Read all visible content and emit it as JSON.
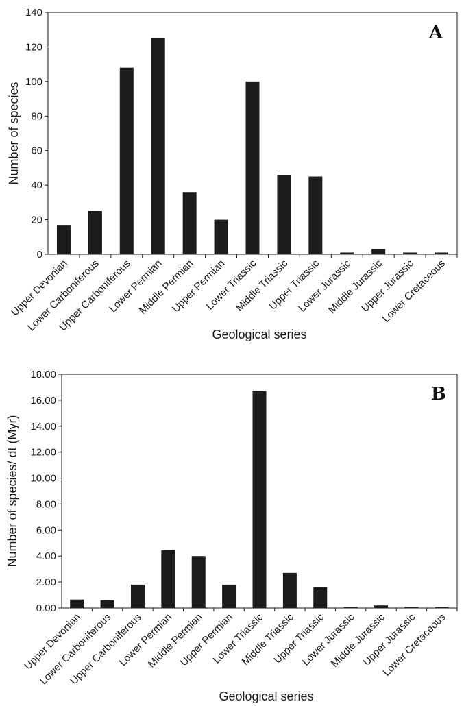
{
  "chart_data": [
    {
      "type": "bar",
      "panel_label": "A",
      "xlabel": "Geological series",
      "ylabel": "Number of species",
      "ylim": [
        0,
        140
      ],
      "yticks": [
        "0",
        "20",
        "40",
        "60",
        "80",
        "100",
        "120",
        "140"
      ],
      "categories": [
        "Upper Devonian",
        "Lower Carboniferous",
        "Upper Carboniferous",
        "Lower Permian",
        "Middle Permian",
        "Upper Permian",
        "Lower Triassic",
        "Middle Triassic",
        "Upper Triassic",
        "Lower Jurassic",
        "Middle Jurassic",
        "Upper Jurassic",
        "Lower Cretaceous"
      ],
      "values": [
        17,
        25,
        108,
        125,
        36,
        20,
        100,
        46,
        45,
        1,
        3,
        1,
        1
      ],
      "bar_color": "#1c1c1c",
      "grid": false
    },
    {
      "type": "bar",
      "panel_label": "B",
      "xlabel": "Geological series",
      "ylabel": "Number of species/ dt (Myr)",
      "ylim": [
        0,
        18
      ],
      "yticks": [
        "0.00",
        "2.00",
        "4.00",
        "6.00",
        "8.00",
        "10.00",
        "12.00",
        "14.00",
        "16.00",
        "18.00"
      ],
      "categories": [
        "Upper Devonian",
        "Lower Carboniferous",
        "Upper Carboniferous",
        "Lower Permian",
        "Middle Permian",
        "Upper Permian",
        "Lower Triassic",
        "Middle Triassic",
        "Upper Triassic",
        "Lower Jurassic",
        "Middle Jurassic",
        "Upper Jurassic",
        "Lower Cretaceous"
      ],
      "values": [
        0.65,
        0.6,
        1.8,
        4.45,
        4.0,
        1.8,
        16.7,
        2.7,
        1.6,
        0.05,
        0.2,
        0.05,
        0.03
      ],
      "bar_color": "#1c1c1c",
      "grid": false
    }
  ]
}
